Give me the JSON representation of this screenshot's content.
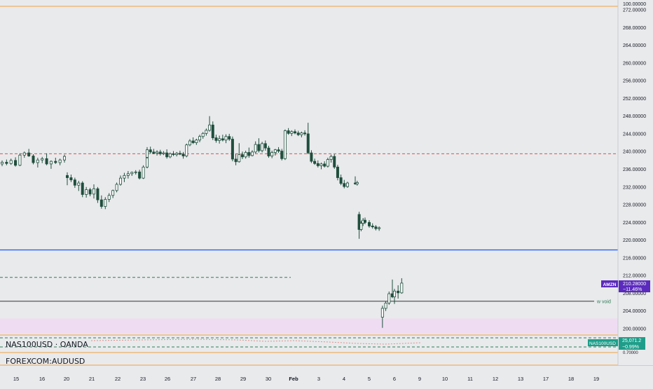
{
  "colors": {
    "background": "#e9eaec",
    "candle": "#1f4e3d",
    "orange_line": "#f0a142",
    "blue_line": "#2962ff",
    "red_dashed": "#d9534f",
    "green_dashed": "#2e7d57",
    "pink_zone": "#efdcf3",
    "amzn_badge": "#5b2bbd",
    "nas_badge": "#1e9e8a"
  },
  "price_axis": {
    "top_label": "100.00000",
    "labels": [
      "272.00000",
      "268.00000",
      "264.00000",
      "260.00000",
      "256.00000",
      "252.00000",
      "248.00000",
      "244.00000",
      "240.00000",
      "236.00000",
      "232.00000",
      "228.00000",
      "224.00000",
      "220.00000",
      "216.00000",
      "212.00000",
      "208.00000",
      "204.00000",
      "200.00000"
    ],
    "bottom_label": "0.70000"
  },
  "time_axis": {
    "labels": [
      "15",
      "16",
      "20",
      "21",
      "22",
      "23",
      "26",
      "27",
      "28",
      "29",
      "30",
      "Feb",
      "3",
      "4",
      "5",
      "6",
      "9",
      "10",
      "11",
      "12",
      "13",
      "17",
      "18",
      "19"
    ]
  },
  "chart_data": {
    "type": "candlestick",
    "price_range": [
      197.5,
      273.5
    ],
    "x_labels": [
      "15",
      "16",
      "20",
      "21",
      "22",
      "23",
      "26",
      "27",
      "28",
      "29",
      "30",
      "Feb",
      "3",
      "4",
      "5",
      "6",
      "9",
      "10",
      "11",
      "12",
      "13",
      "17",
      "18",
      "19"
    ],
    "candles": [
      {
        "o": 237.2,
        "h": 238.0,
        "l": 236.7,
        "c": 237.6
      },
      {
        "o": 237.6,
        "h": 238.2,
        "l": 236.9,
        "c": 237.3
      },
      {
        "o": 237.3,
        "h": 238.4,
        "l": 237.0,
        "c": 238.0
      },
      {
        "o": 238.0,
        "h": 238.7,
        "l": 236.6,
        "c": 236.9
      },
      {
        "o": 236.9,
        "h": 239.6,
        "l": 236.7,
        "c": 239.2
      },
      {
        "o": 239.2,
        "h": 240.0,
        "l": 238.6,
        "c": 239.7
      },
      {
        "o": 239.7,
        "h": 240.6,
        "l": 238.8,
        "c": 239.0
      },
      {
        "o": 239.0,
        "h": 239.4,
        "l": 237.1,
        "c": 237.5
      },
      {
        "o": 237.5,
        "h": 238.6,
        "l": 236.4,
        "c": 238.1
      },
      {
        "o": 238.1,
        "h": 238.8,
        "l": 237.4,
        "c": 238.4
      },
      {
        "o": 238.4,
        "h": 239.6,
        "l": 236.9,
        "c": 237.2
      },
      {
        "o": 237.2,
        "h": 238.0,
        "l": 236.1,
        "c": 237.8
      },
      {
        "o": 237.8,
        "h": 238.6,
        "l": 237.2,
        "c": 237.5
      },
      {
        "o": 237.5,
        "h": 238.4,
        "l": 236.9,
        "c": 238.1
      },
      {
        "o": 238.1,
        "h": 239.3,
        "l": 237.5,
        "c": 238.9
      },
      {
        "o": 234.6,
        "h": 235.3,
        "l": 232.4,
        "c": 234.1
      },
      {
        "o": 234.1,
        "h": 234.8,
        "l": 233.1,
        "c": 233.6
      },
      {
        "o": 233.6,
        "h": 234.1,
        "l": 231.8,
        "c": 232.4
      },
      {
        "o": 232.4,
        "h": 233.4,
        "l": 231.1,
        "c": 232.9
      },
      {
        "o": 232.9,
        "h": 233.3,
        "l": 229.7,
        "c": 230.3
      },
      {
        "o": 230.3,
        "h": 232.0,
        "l": 229.6,
        "c": 231.4
      },
      {
        "o": 231.4,
        "h": 231.8,
        "l": 229.9,
        "c": 230.4
      },
      {
        "o": 230.4,
        "h": 232.6,
        "l": 229.4,
        "c": 231.6
      },
      {
        "o": 231.6,
        "h": 232.0,
        "l": 228.4,
        "c": 229.1
      },
      {
        "o": 229.1,
        "h": 230.1,
        "l": 227.1,
        "c": 227.6
      },
      {
        "o": 227.6,
        "h": 229.7,
        "l": 227.0,
        "c": 229.2
      },
      {
        "o": 229.2,
        "h": 230.6,
        "l": 228.6,
        "c": 230.1
      },
      {
        "o": 230.1,
        "h": 231.4,
        "l": 229.5,
        "c": 231.2
      },
      {
        "o": 231.2,
        "h": 233.0,
        "l": 230.8,
        "c": 232.6
      },
      {
        "o": 232.6,
        "h": 234.6,
        "l": 232.3,
        "c": 234.0
      },
      {
        "o": 234.0,
        "h": 235.2,
        "l": 233.1,
        "c": 234.6
      },
      {
        "o": 234.6,
        "h": 235.6,
        "l": 233.9,
        "c": 235.0
      },
      {
        "o": 235.0,
        "h": 235.5,
        "l": 234.5,
        "c": 235.3
      },
      {
        "o": 235.3,
        "h": 235.8,
        "l": 234.8,
        "c": 235.4
      },
      {
        "o": 235.4,
        "h": 235.9,
        "l": 233.7,
        "c": 234.0
      },
      {
        "o": 234.0,
        "h": 236.9,
        "l": 233.8,
        "c": 236.5
      },
      {
        "o": 236.5,
        "h": 239.1,
        "l": 236.2,
        "c": 238.7
      },
      {
        "o": 238.7,
        "h": 241.0,
        "l": 238.4,
        "c": 240.4
      },
      {
        "o": 240.4,
        "h": 241.1,
        "l": 239.5,
        "c": 239.9
      },
      {
        "o": 239.9,
        "h": 240.6,
        "l": 239.4,
        "c": 239.6
      },
      {
        "o": 239.6,
        "h": 240.3,
        "l": 239.1,
        "c": 239.9
      },
      {
        "o": 239.9,
        "h": 240.4,
        "l": 239.1,
        "c": 239.5
      },
      {
        "o": 239.5,
        "h": 240.1,
        "l": 239.2,
        "c": 239.7
      },
      {
        "o": 239.7,
        "h": 240.5,
        "l": 238.4,
        "c": 238.8
      },
      {
        "o": 238.8,
        "h": 239.8,
        "l": 238.5,
        "c": 239.5
      },
      {
        "o": 239.5,
        "h": 240.1,
        "l": 239.0,
        "c": 239.3
      },
      {
        "o": 239.3,
        "h": 239.9,
        "l": 238.9,
        "c": 239.6
      },
      {
        "o": 239.6,
        "h": 240.2,
        "l": 239.2,
        "c": 239.4
      },
      {
        "o": 239.4,
        "h": 239.9,
        "l": 238.4,
        "c": 239.0
      },
      {
        "o": 239.0,
        "h": 241.8,
        "l": 238.7,
        "c": 241.5
      },
      {
        "o": 241.5,
        "h": 242.8,
        "l": 241.2,
        "c": 242.4
      },
      {
        "o": 242.4,
        "h": 243.2,
        "l": 241.7,
        "c": 242.0
      },
      {
        "o": 242.0,
        "h": 242.9,
        "l": 241.5,
        "c": 242.6
      },
      {
        "o": 242.6,
        "h": 243.8,
        "l": 242.1,
        "c": 243.4
      },
      {
        "o": 243.4,
        "h": 244.4,
        "l": 242.9,
        "c": 244.1
      },
      {
        "o": 244.1,
        "h": 245.2,
        "l": 243.6,
        "c": 244.8
      },
      {
        "o": 244.8,
        "h": 248.0,
        "l": 244.5,
        "c": 246.0
      },
      {
        "o": 246.0,
        "h": 246.8,
        "l": 242.6,
        "c": 243.1
      },
      {
        "o": 243.1,
        "h": 243.8,
        "l": 242.0,
        "c": 242.5
      },
      {
        "o": 242.5,
        "h": 243.6,
        "l": 241.8,
        "c": 242.9
      },
      {
        "o": 242.9,
        "h": 243.8,
        "l": 242.3,
        "c": 242.6
      },
      {
        "o": 242.6,
        "h": 243.9,
        "l": 241.9,
        "c": 243.4
      },
      {
        "o": 243.4,
        "h": 244.0,
        "l": 242.4,
        "c": 242.8
      },
      {
        "o": 242.8,
        "h": 243.4,
        "l": 237.8,
        "c": 238.3
      },
      {
        "o": 238.3,
        "h": 239.5,
        "l": 236.9,
        "c": 237.7
      },
      {
        "o": 237.7,
        "h": 241.9,
        "l": 237.5,
        "c": 239.3
      },
      {
        "o": 239.3,
        "h": 240.0,
        "l": 238.3,
        "c": 238.8
      },
      {
        "o": 238.8,
        "h": 240.2,
        "l": 238.4,
        "c": 239.8
      },
      {
        "o": 239.8,
        "h": 240.9,
        "l": 238.6,
        "c": 239.1
      },
      {
        "o": 239.1,
        "h": 240.3,
        "l": 238.9,
        "c": 239.9
      },
      {
        "o": 239.9,
        "h": 242.3,
        "l": 239.6,
        "c": 241.6
      },
      {
        "o": 241.6,
        "h": 243.0,
        "l": 239.8,
        "c": 240.2
      },
      {
        "o": 240.2,
        "h": 242.2,
        "l": 239.8,
        "c": 241.8
      },
      {
        "o": 241.8,
        "h": 242.5,
        "l": 240.2,
        "c": 240.8
      },
      {
        "o": 240.8,
        "h": 241.3,
        "l": 238.6,
        "c": 239.0
      },
      {
        "o": 239.0,
        "h": 240.2,
        "l": 238.5,
        "c": 239.8
      },
      {
        "o": 239.8,
        "h": 240.6,
        "l": 239.1,
        "c": 240.4
      },
      {
        "o": 240.4,
        "h": 241.0,
        "l": 239.7,
        "c": 240.1
      },
      {
        "o": 240.1,
        "h": 240.6,
        "l": 238.0,
        "c": 238.4
      },
      {
        "o": 238.4,
        "h": 245.0,
        "l": 238.1,
        "c": 244.7
      },
      {
        "o": 244.7,
        "h": 245.3,
        "l": 243.8,
        "c": 244.1
      },
      {
        "o": 244.1,
        "h": 244.8,
        "l": 243.5,
        "c": 244.5
      },
      {
        "o": 244.5,
        "h": 245.0,
        "l": 243.9,
        "c": 244.2
      },
      {
        "o": 244.2,
        "h": 244.7,
        "l": 243.5,
        "c": 243.8
      },
      {
        "o": 243.8,
        "h": 244.5,
        "l": 243.2,
        "c": 244.2
      },
      {
        "o": 244.2,
        "h": 244.8,
        "l": 243.6,
        "c": 244.0
      },
      {
        "o": 244.0,
        "h": 246.5,
        "l": 239.4,
        "c": 239.7
      },
      {
        "o": 239.7,
        "h": 240.3,
        "l": 237.4,
        "c": 237.8
      },
      {
        "o": 237.8,
        "h": 238.4,
        "l": 237.0,
        "c": 237.3
      },
      {
        "o": 237.3,
        "h": 238.0,
        "l": 236.4,
        "c": 236.8
      },
      {
        "o": 236.8,
        "h": 237.5,
        "l": 236.0,
        "c": 237.2
      },
      {
        "o": 237.2,
        "h": 237.8,
        "l": 236.4,
        "c": 236.7
      },
      {
        "o": 236.7,
        "h": 238.6,
        "l": 236.4,
        "c": 238.2
      },
      {
        "o": 238.2,
        "h": 239.3,
        "l": 237.5,
        "c": 238.9
      },
      {
        "o": 238.9,
        "h": 239.4,
        "l": 236.1,
        "c": 236.5
      },
      {
        "o": 236.5,
        "h": 237.0,
        "l": 233.5,
        "c": 234.1
      },
      {
        "o": 234.1,
        "h": 234.8,
        "l": 232.4,
        "c": 232.8
      },
      {
        "o": 232.8,
        "h": 233.6,
        "l": 231.7,
        "c": 232.1
      },
      {
        "o": 232.1,
        "h": 233.2,
        "l": 231.8,
        "c": 232.9
      },
      {
        "o": 232.9,
        "h": 234.4,
        "l": 232.5,
        "c": 232.7
      },
      {
        "o": 232.7,
        "h": 233.4,
        "l": 232.3,
        "c": 233.0
      },
      {
        "o": 225.8,
        "h": 226.4,
        "l": 220.3,
        "c": 222.4
      },
      {
        "o": 222.4,
        "h": 224.3,
        "l": 222.0,
        "c": 223.8
      },
      {
        "o": 223.8,
        "h": 225.0,
        "l": 223.2,
        "c": 224.5
      },
      {
        "o": 224.5,
        "h": 225.1,
        "l": 223.6,
        "c": 224.0
      },
      {
        "o": 224.0,
        "h": 224.5,
        "l": 222.8,
        "c": 223.2
      },
      {
        "o": 223.2,
        "h": 223.8,
        "l": 222.6,
        "c": 223.0
      },
      {
        "o": 223.0,
        "h": 223.4,
        "l": 222.2,
        "c": 222.6
      },
      {
        "o": 222.6,
        "h": 223.1,
        "l": 222.1,
        "c": 222.8
      },
      {
        "o": 202.6,
        "h": 205.2,
        "l": 200.2,
        "c": 204.6
      },
      {
        "o": 204.6,
        "h": 206.2,
        "l": 204.0,
        "c": 205.8
      },
      {
        "o": 205.8,
        "h": 208.4,
        "l": 205.4,
        "c": 207.9
      },
      {
        "o": 207.9,
        "h": 211.1,
        "l": 206.9,
        "c": 207.2
      },
      {
        "o": 207.2,
        "h": 209.0,
        "l": 205.6,
        "c": 208.5
      },
      {
        "o": 208.5,
        "h": 209.8,
        "l": 206.8,
        "c": 208.1
      },
      {
        "o": 208.1,
        "h": 211.4,
        "l": 207.9,
        "c": 210.3
      }
    ],
    "levels": [
      {
        "label": "red-dashed",
        "price": 239.5
      },
      {
        "label": "blue",
        "price": 217.8
      },
      {
        "label": "green-dashed",
        "price": 211.6
      },
      {
        "label": "w void",
        "price": 206.2
      }
    ],
    "zone": {
      "from": 198.8,
      "to": 202.3
    }
  },
  "overlay": {
    "void_label": "w void",
    "amzn": {
      "ticker": "AMZN",
      "price": "210.28000",
      "change": "−11.46%"
    },
    "nas": {
      "ticker": "NAS100USD",
      "price": "25,071.2",
      "change": "−0.99%"
    }
  },
  "panes": {
    "nas_title": "NAS100USD · OANDA",
    "aud_title": "FOREXCOM:AUDUSD"
  }
}
